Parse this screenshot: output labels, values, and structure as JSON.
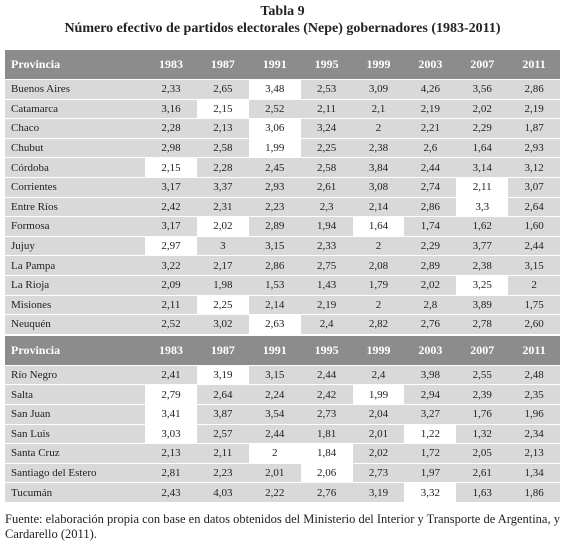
{
  "title": "Tabla 9",
  "subtitle": "Número efectivo de partidos electorales (Nepe) gobernadores (1983-2011)",
  "sections": [
    {
      "header": [
        "Provincia",
        "1983",
        "1987",
        "1991",
        "1995",
        "1999",
        "2003",
        "2007",
        "2011"
      ],
      "rows": [
        {
          "cells": [
            "Buenos Aires",
            "2,33",
            "2,65",
            "3,48",
            "2,53",
            "3,09",
            "4,26",
            "3,56",
            "2,86"
          ],
          "highlight": [
            3
          ]
        },
        {
          "cells": [
            "Catamarca",
            "3,16",
            "2,15",
            "2,52",
            "2,11",
            "2,1",
            "2,19",
            "2,02",
            "2,19"
          ],
          "highlight": [
            2
          ]
        },
        {
          "cells": [
            "Chaco",
            "2,28",
            "2,13",
            "3,06",
            "3,24",
            "2",
            "2,21",
            "2,29",
            "1,87"
          ],
          "highlight": [
            3
          ]
        },
        {
          "cells": [
            "Chubut",
            "2,98",
            "2,58",
            "1,99",
            "2,25",
            "2,38",
            "2,6",
            "1,64",
            "2,93"
          ],
          "highlight": [
            3
          ]
        },
        {
          "cells": [
            "Córdoba",
            "2,15",
            "2,28",
            "2,45",
            "2,58",
            "3,84",
            "2,44",
            "3,14",
            "3,12"
          ],
          "highlight": [
            1
          ]
        },
        {
          "cells": [
            "Corrientes",
            "3,17",
            "3,37",
            "2,93",
            "2,61",
            "3,08",
            "2,74",
            "2,11",
            "3,07"
          ],
          "highlight": [
            7
          ]
        },
        {
          "cells": [
            "Entre Ríos",
            "2,42",
            "2,31",
            "2,23",
            "2,3",
            "2,14",
            "2,86",
            "3,3",
            "2,64"
          ],
          "highlight": [
            7
          ]
        },
        {
          "cells": [
            "Formosa",
            "3,17",
            "2,02",
            "2,89",
            "1,94",
            "1,64",
            "1,74",
            "1,62",
            "1,60"
          ],
          "highlight": [
            2,
            5
          ]
        },
        {
          "cells": [
            "Jujuy",
            "2,97",
            "3",
            "3,15",
            "2,33",
            "2",
            "2,29",
            "3,77",
            "2,44"
          ],
          "highlight": [
            1
          ]
        },
        {
          "cells": [
            "La Pampa",
            "3,22",
            "2,17",
            "2,86",
            "2,75",
            "2,08",
            "2,89",
            "2,38",
            "3,15"
          ],
          "highlight": []
        },
        {
          "cells": [
            "La Rioja",
            "2,09",
            "1,98",
            "1,53",
            "1,43",
            "1,79",
            "2,02",
            "3,25",
            "2"
          ],
          "highlight": [
            7
          ]
        },
        {
          "cells": [
            "Misiones",
            "2,11",
            "2,25",
            "2,14",
            "2,19",
            "2",
            "2,8",
            "3,89",
            "1,75"
          ],
          "highlight": [
            2
          ]
        },
        {
          "cells": [
            "Neuquén",
            "2,52",
            "3,02",
            "2,63",
            "2,4",
            "2,82",
            "2,76",
            "2,78",
            "2,60"
          ],
          "highlight": [
            3
          ]
        }
      ]
    },
    {
      "header": [
        "Provincia",
        "1983",
        "1987",
        "1991",
        "1995",
        "1999",
        "2003",
        "2007",
        "2011"
      ],
      "rows": [
        {
          "cells": [
            "Río Negro",
            "2,41",
            "3,19",
            "3,15",
            "2,44",
            "2,4",
            "3,98",
            "2,55",
            "2,48"
          ],
          "highlight": [
            2
          ]
        },
        {
          "cells": [
            "Salta",
            "2,79",
            "2,64",
            "2,24",
            "2,42",
            "1,99",
            "2,94",
            "2,39",
            "2,35"
          ],
          "highlight": [
            1,
            5
          ]
        },
        {
          "cells": [
            "San Juan",
            "3,41",
            "3,87",
            "3,54",
            "2,73",
            "2,04",
            "3,27",
            "1,76",
            "1,96"
          ],
          "highlight": [
            1
          ]
        },
        {
          "cells": [
            "San Luis",
            "3,03",
            "2,57",
            "2,44",
            "1,81",
            "2,01",
            "1,22",
            "1,32",
            "2,34"
          ],
          "highlight": [
            1,
            6
          ]
        },
        {
          "cells": [
            "Santa Cruz",
            "2,13",
            "2,11",
            "2",
            "1,84",
            "2,02",
            "1,72",
            "2,05",
            "2,13"
          ],
          "highlight": [
            3,
            4
          ]
        },
        {
          "cells": [
            "Santiago del Estero",
            "2,81",
            "2,23",
            "2,01",
            "2,06",
            "2,73",
            "1,97",
            "2,61",
            "1,34"
          ],
          "highlight": [
            4
          ]
        },
        {
          "cells": [
            "Tucumán",
            "2,43",
            "4,03",
            "2,22",
            "2,76",
            "3,19",
            "3,32",
            "1,63",
            "1,86"
          ],
          "highlight": [
            6
          ]
        }
      ]
    }
  ],
  "source": "Fuente: elaboración propia con base en datos obtenidos del Ministerio del Interior y Transporte de Argentina, y Cardarello (2011)."
}
